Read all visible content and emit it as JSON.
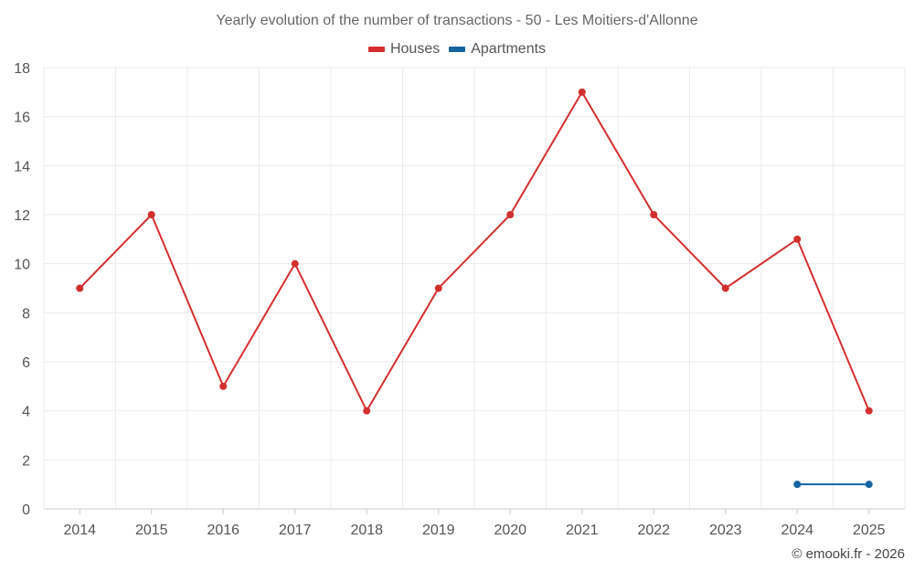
{
  "chart_data": {
    "type": "line",
    "title": "Yearly evolution of the number of transactions - 50 - Les Moitiers-d'Allonne",
    "xlabel": "",
    "ylabel": "",
    "categories": [
      "2014",
      "2015",
      "2016",
      "2017",
      "2018",
      "2019",
      "2020",
      "2021",
      "2022",
      "2023",
      "2024",
      "2025"
    ],
    "ylim": [
      0,
      18
    ],
    "yticks": [
      0,
      2,
      4,
      6,
      8,
      10,
      12,
      14,
      16,
      18
    ],
    "grid": true,
    "legend_position": "top-center",
    "series": [
      {
        "name": "Houses",
        "color": "#d32f2f",
        "values": [
          9,
          12,
          5,
          10,
          4,
          9,
          12,
          17,
          12,
          9,
          11,
          4
        ]
      },
      {
        "name": "Apartments",
        "color": "#1565a0",
        "values": [
          null,
          null,
          null,
          null,
          null,
          null,
          null,
          null,
          null,
          null,
          1,
          1
        ]
      }
    ]
  },
  "footer": {
    "credit": "© emooki.fr - 2026"
  }
}
